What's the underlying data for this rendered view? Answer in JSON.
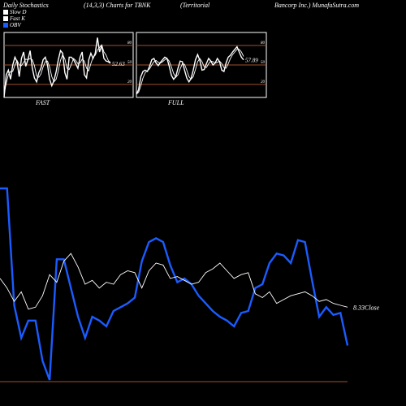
{
  "header": {
    "left": "Daily Stochastics",
    "params": "(14,3,3) Charts for TBNK",
    "company_a": "(Territorial",
    "company_b": "Bancorp Inc.) MunafaSutra.com"
  },
  "legend": [
    {
      "label": "Slow  D",
      "color": "#ffffff"
    },
    {
      "label": "Fast K",
      "color": "#ffffff"
    },
    {
      "label": "OBV",
      "color": "#1a5cff"
    }
  ],
  "colors": {
    "background": "#000000",
    "grid": "#a0522d",
    "stoch": "#ffffff",
    "obv": "#1a5cff",
    "panel_border": "#ffffff"
  },
  "chart_data": [
    {
      "type": "line",
      "title": "FAST",
      "ylim": [
        0,
        100
      ],
      "gridlines": [
        20,
        50,
        80
      ],
      "ytick_labels": [
        "80",
        "50",
        "20"
      ],
      "last_value_label": "52.63",
      "series": [
        {
          "name": "Fast K",
          "values": [
            0,
            35,
            42,
            28,
            50,
            62,
            55,
            32,
            60,
            70,
            48,
            58,
            72,
            45,
            30,
            24,
            38,
            45,
            58,
            62,
            50,
            28,
            18,
            26,
            40,
            58,
            72,
            68,
            38,
            28,
            62,
            62,
            58,
            52,
            45,
            62,
            70,
            35,
            30,
            58,
            68,
            60,
            68,
            92,
            70,
            80,
            60,
            56,
            55,
            52.63
          ]
        },
        {
          "name": "Slow  D",
          "values": [
            5,
            22,
            35,
            40,
            40,
            50,
            57,
            50,
            49,
            54,
            59,
            58,
            60,
            58,
            49,
            33,
            31,
            36,
            47,
            55,
            56,
            47,
            32,
            24,
            28,
            41,
            57,
            66,
            59,
            45,
            43,
            51,
            60,
            57,
            52,
            53,
            59,
            56,
            45,
            41,
            52,
            62,
            65,
            73,
            77,
            81,
            70,
            65,
            57,
            54
          ]
        }
      ]
    },
    {
      "type": "line",
      "title": "FULL",
      "ylim": [
        0,
        100
      ],
      "gridlines": [
        20,
        50,
        80
      ],
      "ytick_labels": [
        "80",
        "50",
        "20"
      ],
      "last_value_label": "57.89",
      "series": [
        {
          "name": "Full K",
          "values": [
            5,
            12,
            32,
            40,
            42,
            40,
            48,
            58,
            60,
            53,
            49,
            54,
            58,
            62,
            60,
            48,
            34,
            28,
            32,
            45,
            56,
            55,
            42,
            30,
            24,
            29,
            42,
            58,
            66,
            57,
            42,
            43,
            52,
            60,
            56,
            50,
            53,
            60,
            55,
            42,
            40,
            53,
            62,
            65,
            70,
            74,
            78,
            70,
            62,
            57.89
          ]
        },
        {
          "name": "Full D",
          "values": [
            5,
            8,
            18,
            30,
            38,
            41,
            44,
            50,
            55,
            57,
            54,
            53,
            55,
            58,
            60,
            56,
            47,
            37,
            31,
            35,
            44,
            52,
            51,
            42,
            32,
            28,
            32,
            43,
            55,
            60,
            55,
            47,
            46,
            52,
            56,
            55,
            53,
            54,
            56,
            52,
            46,
            45,
            52,
            60,
            66,
            70,
            74,
            74,
            70,
            63
          ]
        }
      ]
    },
    {
      "type": "line",
      "title": "",
      "series": [
        {
          "name": "OBV",
          "values": [
            100,
            100,
            39,
            22,
            31,
            31,
            10,
            0,
            63,
            63,
            48,
            33,
            22,
            33,
            31,
            28,
            36,
            38,
            40,
            43,
            62,
            72,
            74,
            72,
            60,
            51,
            53,
            50,
            44,
            40,
            36,
            33,
            31,
            28,
            35,
            36,
            48,
            50,
            61,
            66,
            65,
            61,
            73,
            72,
            52,
            33,
            38,
            34,
            35,
            18
          ]
        },
        {
          "name": "Close",
          "values": [
            53,
            48,
            41,
            46,
            37,
            38,
            44,
            55,
            51,
            62,
            66,
            59,
            50,
            52,
            48,
            51,
            50,
            55,
            57,
            56,
            48,
            57,
            61,
            60,
            53,
            54,
            52,
            50,
            51,
            56,
            58,
            61,
            57,
            53,
            55,
            56,
            45,
            43,
            46,
            40,
            42,
            44,
            45,
            46,
            44,
            41,
            42,
            40,
            39,
            38
          ]
        }
      ],
      "end_label": "8.33Close"
    }
  ]
}
